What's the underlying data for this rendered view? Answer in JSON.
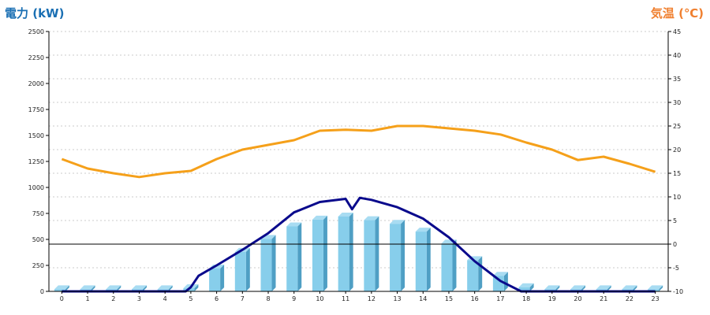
{
  "units": {
    "left": "電力 (kW)",
    "right": "気温 (℃)"
  },
  "colors": {
    "bar": "#87ceeb",
    "bar_dark": "#4f9fc4",
    "power_line": "#0a0a8c",
    "temp_line": "#f5a01a",
    "grid": "#bbbbbb"
  },
  "chart_data": {
    "type": "bar",
    "title": "",
    "x": [
      0,
      1,
      2,
      3,
      4,
      5,
      6,
      7,
      8,
      9,
      10,
      11,
      12,
      13,
      14,
      15,
      16,
      17,
      18,
      19,
      20,
      21,
      22,
      23
    ],
    "xlabel": "",
    "ylabel": "電力 (kW)",
    "y2label": "気温 (℃)",
    "ylim": [
      0,
      2500
    ],
    "y2lim": [
      -10,
      45
    ],
    "y_ticks": [
      0,
      250,
      500,
      750,
      1000,
      1250,
      1500,
      1750,
      2000,
      2250,
      2500
    ],
    "y2_ticks": [
      -10,
      -5,
      0,
      5,
      10,
      15,
      20,
      25,
      30,
      35,
      40,
      45
    ],
    "grid": true,
    "series": [
      {
        "kind": "bar",
        "axis": "left",
        "values": [
          20,
          20,
          20,
          20,
          20,
          30,
          220,
          380,
          505,
          625,
          690,
          720,
          685,
          650,
          575,
          460,
          300,
          150,
          40,
          20,
          20,
          20,
          20,
          20
        ]
      },
      {
        "kind": "line",
        "axis": "left",
        "points": [
          [
            0,
            0
          ],
          [
            1,
            0
          ],
          [
            2,
            0
          ],
          [
            3,
            0
          ],
          [
            4,
            0
          ],
          [
            4.8,
            0
          ],
          [
            5,
            40
          ],
          [
            5.3,
            150
          ],
          [
            6,
            250
          ],
          [
            7,
            400
          ],
          [
            8,
            560
          ],
          [
            9,
            760
          ],
          [
            10,
            860
          ],
          [
            11,
            890
          ],
          [
            11.25,
            790
          ],
          [
            11.55,
            900
          ],
          [
            12,
            880
          ],
          [
            13,
            810
          ],
          [
            14,
            700
          ],
          [
            15,
            520
          ],
          [
            16,
            290
          ],
          [
            17,
            100
          ],
          [
            17.8,
            0
          ],
          [
            18,
            0
          ],
          [
            19,
            0
          ],
          [
            20,
            0
          ],
          [
            21,
            0
          ],
          [
            22,
            0
          ],
          [
            23,
            0
          ]
        ]
      },
      {
        "kind": "line",
        "axis": "right",
        "values": [
          18,
          16,
          15,
          14.2,
          15,
          15.5,
          18,
          20,
          21,
          22,
          24,
          24.2,
          24,
          25,
          25,
          24.5,
          24,
          23.2,
          21.5,
          20,
          17.8,
          18.5,
          17,
          15.3
        ]
      }
    ]
  }
}
